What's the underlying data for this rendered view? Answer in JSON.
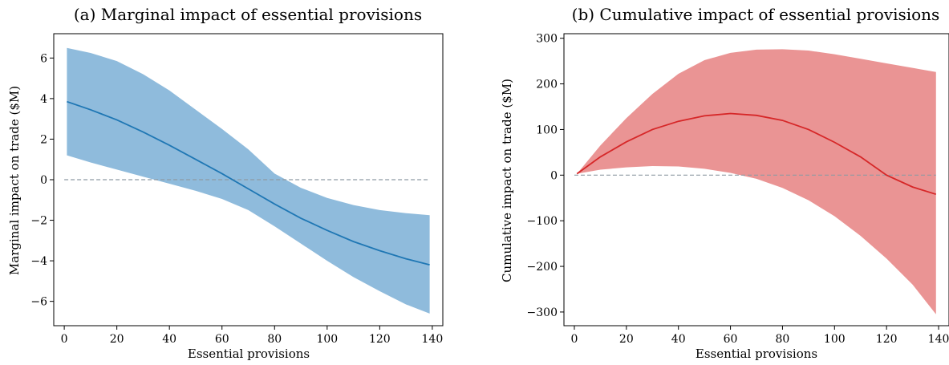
{
  "chart_data": [
    {
      "type": "line",
      "title": "(a) Marginal impact of essential provisions",
      "xlabel": "Essential provisions",
      "ylabel": "Marginal impact on trade ($M)",
      "xlim": [
        -4,
        144
      ],
      "ylim": [
        -7.2,
        7.2
      ],
      "xticks": [
        0,
        20,
        40,
        60,
        80,
        100,
        120,
        140
      ],
      "yticks": [
        6,
        4,
        2,
        0,
        -2,
        -4,
        -6
      ],
      "ytick_labels": [
        "6",
        "4",
        "2",
        "0",
        "−2",
        "−4",
        "−6"
      ],
      "reference_line": 0,
      "colors": {
        "line": "#1f77b4",
        "band": "#8fbbdc",
        "reference": "#8e9aa3"
      },
      "series": [
        {
          "x": [
            1,
            10,
            20,
            30,
            40,
            50,
            60,
            70,
            80,
            90,
            100,
            110,
            120,
            130,
            139
          ],
          "y": [
            3.85,
            3.45,
            2.95,
            2.35,
            1.7,
            1.0,
            0.3,
            -0.45,
            -1.2,
            -1.9,
            -2.5,
            -3.05,
            -3.5,
            -3.9,
            -4.2
          ],
          "lower": [
            1.2,
            0.85,
            0.5,
            0.15,
            -0.2,
            -0.55,
            -0.95,
            -1.5,
            -2.3,
            -3.15,
            -4.0,
            -4.8,
            -5.5,
            -6.15,
            -6.6
          ],
          "upper": [
            6.5,
            6.25,
            5.85,
            5.2,
            4.4,
            3.45,
            2.5,
            1.5,
            0.3,
            -0.4,
            -0.9,
            -1.25,
            -1.5,
            -1.65,
            -1.75
          ]
        }
      ]
    },
    {
      "type": "line",
      "title": "(b) Cumulative impact of essential provisions",
      "xlabel": "Essential provisions",
      "ylabel": "Cumulative impact on trade ($M)",
      "xlim": [
        -4,
        144
      ],
      "ylim": [
        -330,
        310
      ],
      "xticks": [
        0,
        20,
        40,
        60,
        80,
        100,
        120,
        140
      ],
      "yticks": [
        300,
        200,
        100,
        0,
        -100,
        -200,
        -300
      ],
      "ytick_labels": [
        "300",
        "200",
        "100",
        "0",
        "−100",
        "−200",
        "−300"
      ],
      "reference_line": 0,
      "colors": {
        "line": "#d62728",
        "band": "#ea9494",
        "reference": "#8e9aa3"
      },
      "series": [
        {
          "x": [
            1,
            10,
            20,
            30,
            40,
            50,
            60,
            70,
            80,
            90,
            100,
            110,
            120,
            130,
            139
          ],
          "y": [
            3,
            40,
            73,
            100,
            118,
            130,
            135,
            131,
            120,
            100,
            72,
            40,
            0,
            -26,
            -42
          ],
          "lower": [
            3,
            12,
            17,
            20,
            19,
            14,
            5,
            -8,
            -28,
            -55,
            -90,
            -133,
            -183,
            -240,
            -305
          ],
          "upper": [
            3,
            65,
            125,
            178,
            222,
            252,
            268,
            275,
            276,
            273,
            265,
            255,
            245,
            235,
            226
          ]
        }
      ]
    }
  ]
}
